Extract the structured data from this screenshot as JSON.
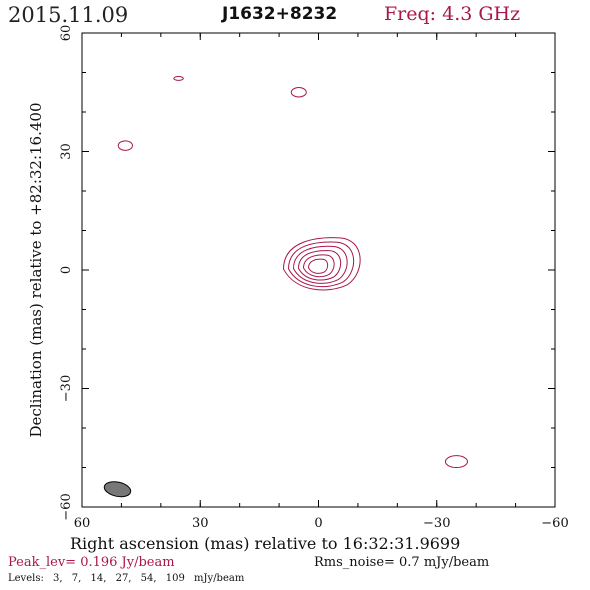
{
  "header": {
    "date": "2015.11.09",
    "source": "J1632+8232",
    "freq_label": "Freq: 4.3 GHz"
  },
  "chart_data": {
    "type": "contour",
    "xlabel": "Right ascension (mas) relative to 16:32:31.9699",
    "ylabel": "Declination (mas) relative to +82:32:16.400",
    "xlim": [
      60,
      -60
    ],
    "ylim": [
      -60,
      60
    ],
    "x_ticks": [
      "60",
      "30",
      "0",
      "−30",
      "−60"
    ],
    "y_ticks": [
      "60",
      "30",
      "0",
      "−30",
      "−60"
    ],
    "grid": false,
    "contour_color": "#a8174c",
    "beam_color": "#777777",
    "core": {
      "x": 0,
      "y": 1,
      "levels_mjy": [
        3,
        7,
        14,
        27,
        54,
        109
      ]
    },
    "isolated_contours": [
      {
        "x": 35.5,
        "y": 48.5,
        "rx": 1.2,
        "ry": 0.5
      },
      {
        "x": 5,
        "y": 45,
        "rx": 1.9,
        "ry": 1.2
      },
      {
        "x": 49,
        "y": 31.5,
        "rx": 1.8,
        "ry": 1.2
      },
      {
        "x": -35,
        "y": -48.5,
        "rx": 2.8,
        "ry": 1.5
      }
    ],
    "beam": {
      "x": 51,
      "y": -55.5,
      "rx": 3.4,
      "ry": 1.8
    }
  },
  "footer": {
    "peak": "Peak_lev=  0.196 Jy/beam",
    "rms": "Rms_noise=  0.7 mJy/beam",
    "levels_prefix": "Levels:",
    "levels": [
      "3,",
      "7,",
      "14,",
      "27,",
      "54,",
      "109",
      "mJy/beam"
    ]
  }
}
